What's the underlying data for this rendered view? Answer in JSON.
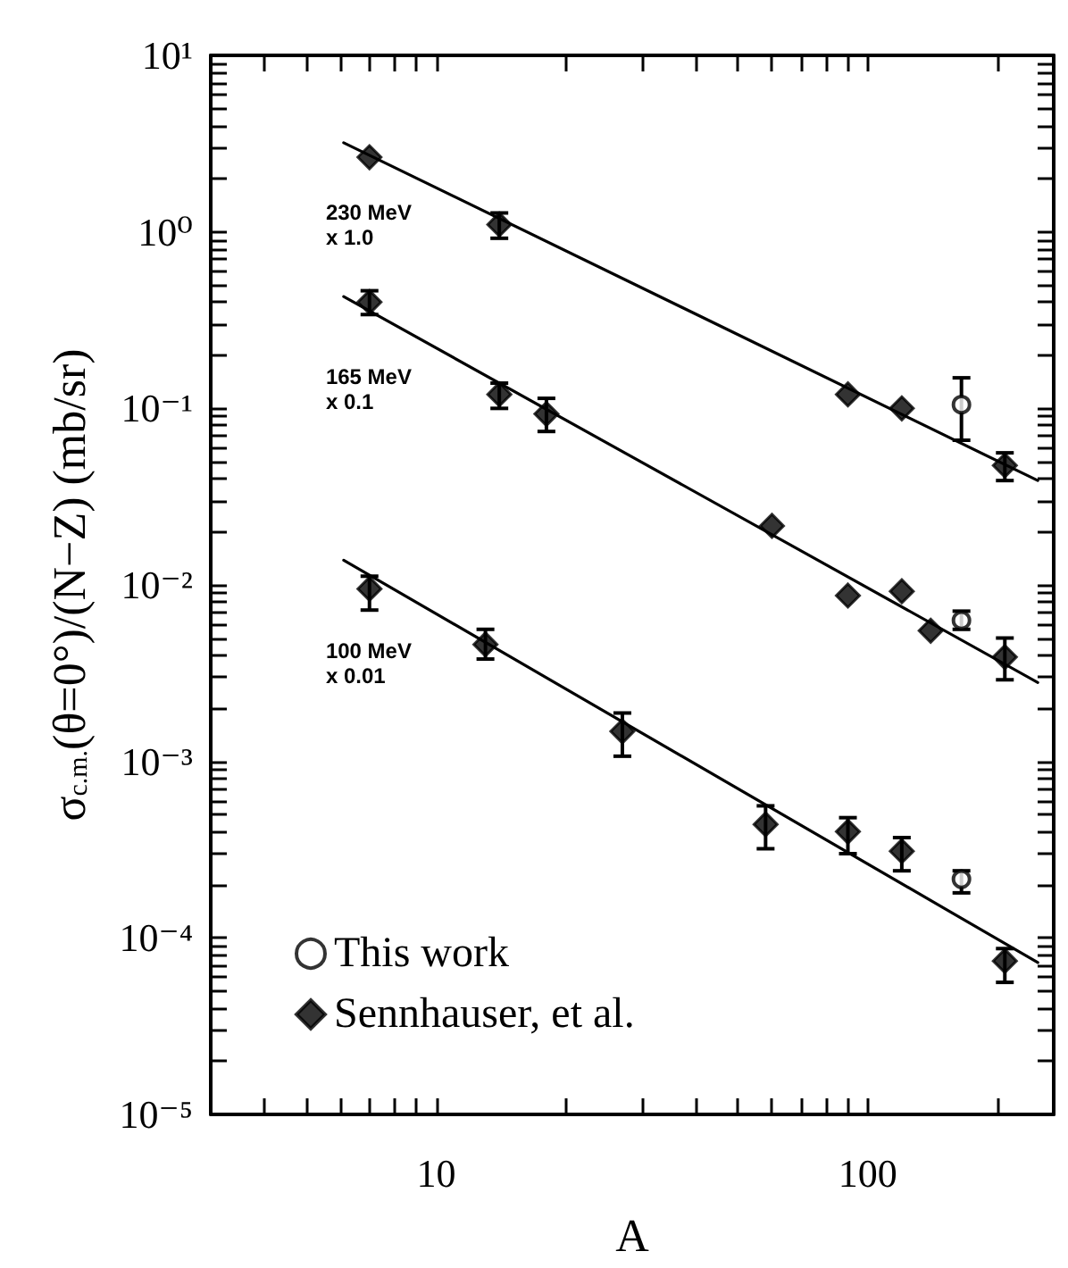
{
  "chart_data": {
    "type": "scatter",
    "xlabel": "A",
    "ylabel": "σ$_{c.m.}$(θ=0°)/(N−Z) (mb/sr)",
    "log": "xy",
    "grid": false,
    "legend": "bottom left",
    "xlim": [
      3,
      270
    ],
    "ylim": [
      1e-05,
      10
    ],
    "xticks": [
      {
        "value": 3,
        "label": null
      },
      {
        "value": 4,
        "label": null
      },
      {
        "value": 5,
        "label": null
      },
      {
        "value": 6,
        "label": null
      },
      {
        "value": 7,
        "label": null
      },
      {
        "value": 8,
        "label": null
      },
      {
        "value": 9,
        "label": null
      },
      10,
      {
        "value": 20,
        "label": null
      },
      {
        "value": 30,
        "label": null
      },
      {
        "value": 40,
        "label": null
      },
      {
        "value": 50,
        "label": null
      },
      {
        "value": 60,
        "label": null
      },
      {
        "value": 70,
        "label": null
      },
      {
        "value": 80,
        "label": null
      },
      {
        "value": 90,
        "label": null
      },
      100,
      {
        "value": 200,
        "label": null
      }
    ],
    "yticks": [
      {
        "value": 1e-05,
        "label": "10⁻⁵"
      },
      {
        "value": 2e-05,
        "label": null
      },
      {
        "value": 3e-05,
        "label": null
      },
      {
        "value": 4e-05,
        "label": null
      },
      {
        "value": 5e-05,
        "label": null
      },
      {
        "value": 6e-05,
        "label": null
      },
      {
        "value": 7e-05,
        "label": null
      },
      {
        "value": 8e-05,
        "label": null
      },
      {
        "value": 9e-05,
        "label": null
      },
      {
        "value": 0.0001,
        "label": "10⁻⁴"
      },
      {
        "value": 0.0002,
        "label": null
      },
      {
        "value": 0.0003,
        "label": null
      },
      {
        "value": 0.0004,
        "label": null
      },
      {
        "value": 0.0005,
        "label": null
      },
      {
        "value": 0.0006,
        "label": null
      },
      {
        "value": 0.0007,
        "label": null
      },
      {
        "value": 0.0008,
        "label": null
      },
      {
        "value": 0.0009,
        "label": null
      },
      {
        "value": 0.001,
        "label": "10⁻³"
      },
      {
        "value": 0.002,
        "label": null
      },
      {
        "value": 0.003,
        "label": null
      },
      {
        "value": 0.004,
        "label": null
      },
      {
        "value": 0.005,
        "label": null
      },
      {
        "value": 0.006,
        "label": null
      },
      {
        "value": 0.007,
        "label": null
      },
      {
        "value": 0.008,
        "label": null
      },
      {
        "value": 0.009,
        "label": null
      },
      {
        "value": 0.01,
        "label": "10⁻²"
      },
      {
        "value": 0.02,
        "label": null
      },
      {
        "value": 0.03,
        "label": null
      },
      {
        "value": 0.04,
        "label": null
      },
      {
        "value": 0.05,
        "label": null
      },
      {
        "value": 0.06,
        "label": null
      },
      {
        "value": 0.07,
        "label": null
      },
      {
        "value": 0.08,
        "label": null
      },
      {
        "value": 0.09,
        "label": null
      },
      {
        "value": 0.1,
        "label": "10⁻¹"
      },
      {
        "value": 0.2,
        "label": null
      },
      {
        "value": 0.3,
        "label": null
      },
      {
        "value": 0.4,
        "label": null
      },
      {
        "value": 0.5,
        "label": null
      },
      {
        "value": 0.6,
        "label": null
      },
      {
        "value": 0.7,
        "label": null
      },
      {
        "value": 0.8,
        "label": null
      },
      {
        "value": 0.9,
        "label": null
      },
      {
        "value": 1,
        "label": "10⁰"
      },
      {
        "value": 2,
        "label": null
      },
      {
        "value": 3,
        "label": null
      },
      {
        "value": 4,
        "label": null
      },
      {
        "value": 5,
        "label": null
      },
      {
        "value": 6,
        "label": null
      },
      {
        "value": 7,
        "label": null
      },
      {
        "value": 8,
        "label": null
      },
      {
        "value": 9,
        "label": null
      },
      {
        "value": 10,
        "label": "10¹"
      }
    ],
    "annotations": [
      "230 MeV\nx 1.0",
      "165 MeV\nx 0.1",
      "100 MeV\nx 0.01"
    ],
    "series": [
      {
        "name": "This work",
        "marker": "circle",
        "color": "#000000",
        "x": [
          165,
          165,
          165
        ],
        "values": [
          0.105,
          0.0063,
          0.000215
        ],
        "errors": [
          [
            0.066,
            0.149
          ],
          [
            0.0056,
            0.0071
          ],
          [
            0.00018,
            0.00024
          ]
        ]
      },
      {
        "name": "Sennhauser, et al.",
        "marker": "diamond",
        "color": "#000000",
        "x": [
          7,
          14,
          90,
          120,
          208,
          7,
          14,
          18,
          60,
          90,
          120,
          140,
          208,
          7,
          13,
          27,
          58,
          90,
          120,
          208
        ],
        "values": [
          2.65,
          1.1,
          0.12,
          0.1,
          0.0475,
          0.4,
          0.12,
          0.093,
          0.0216,
          0.0087,
          0.0092,
          0.0055,
          0.0039,
          0.0095,
          0.0046,
          0.00148,
          0.00044,
          0.0004,
          0.00031,
          7.4e-05
        ],
        "errors": [
          null,
          [
            0.92,
            1.28
          ],
          null,
          null,
          [
            0.039,
            0.056
          ],
          [
            0.34,
            0.464
          ],
          [
            0.1,
            0.139
          ],
          [
            0.074,
            0.114
          ],
          null,
          null,
          null,
          null,
          [
            0.0029,
            0.005
          ],
          [
            0.0072,
            0.0112
          ],
          [
            0.0038,
            0.0056
          ],
          [
            0.00107,
            0.00188
          ],
          [
            0.00032,
            0.00056
          ],
          [
            0.0003,
            0.00048
          ],
          [
            0.00024,
            0.00037
          ],
          [
            5.6e-05,
            8.7e-05
          ]
        ]
      },
      {
        "type": "line",
        "marker": "none",
        "color": "#000000",
        "x": [
          6.1,
          248
        ],
        "values": [
          3.2,
          0.039
        ]
      },
      {
        "type": "line",
        "marker": "none",
        "color": "#000000",
        "x": [
          6.1,
          248
        ],
        "values": [
          0.43,
          0.0028
        ]
      },
      {
        "type": "line",
        "marker": "none",
        "color": "#000000",
        "x": [
          6.1,
          248
        ],
        "values": [
          0.0138,
          7.25e-05
        ]
      }
    ]
  }
}
